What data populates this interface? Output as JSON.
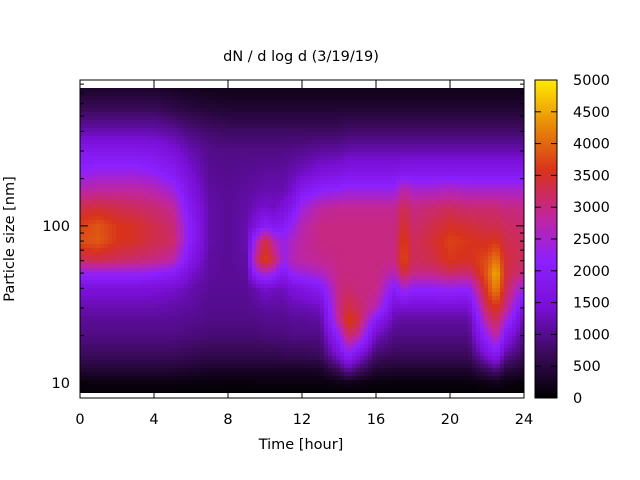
{
  "chart_data": {
    "type": "heatmap",
    "title": "dN / d log d (3/19/19)",
    "xlabel": "Time [hour]",
    "ylabel": "Particle size [nm]",
    "xlim": [
      0,
      24
    ],
    "ylim": [
      8,
      850
    ],
    "y_scale": "log",
    "x_ticks": [
      "0",
      "4",
      "8",
      "12",
      "16",
      "20",
      "24"
    ],
    "y_ticks": [
      "10",
      "100"
    ],
    "colorbar": {
      "min": 0,
      "max": 5000,
      "ticks": [
        "0",
        "500",
        "1000",
        "1500",
        "2000",
        "2500",
        "3000",
        "3500",
        "4000",
        "4500",
        "5000"
      ]
    },
    "colormap": [
      "#000000",
      "#3b0a5c",
      "#7a0fd6",
      "#8c20ff",
      "#c1269b",
      "#d8321c",
      "#e88a08",
      "#ffea00"
    ],
    "grid": false,
    "x": [
      0,
      1,
      2,
      3,
      4,
      5,
      6,
      7,
      8,
      9,
      9.5,
      10,
      10.5,
      11,
      11.5,
      12,
      13,
      14,
      14.5,
      15,
      16,
      17,
      17.5,
      18,
      19,
      20,
      21,
      22,
      22.5,
      23,
      24
    ],
    "y": [
      8.5,
      10,
      12,
      15,
      20,
      25,
      30,
      40,
      50,
      60,
      80,
      100,
      130,
      170,
      220,
      300,
      400,
      550,
      850
    ],
    "z": [
      [
        50,
        120,
        400,
        700,
        950,
        1050,
        1200,
        1500,
        2300,
        3200,
        3800,
        3700,
        3300,
        2700,
        2200,
        1800,
        1200,
        700,
        200
      ],
      [
        50,
        120,
        400,
        700,
        950,
        1050,
        1200,
        1500,
        2300,
        3300,
        3900,
        3850,
        3400,
        2800,
        2300,
        1800,
        1200,
        700,
        200
      ],
      [
        50,
        120,
        400,
        700,
        950,
        1050,
        1200,
        1500,
        2300,
        3200,
        3600,
        3600,
        3300,
        2800,
        2300,
        1800,
        1200,
        700,
        200
      ],
      [
        50,
        120,
        400,
        700,
        950,
        1050,
        1200,
        1500,
        2300,
        3100,
        3500,
        3500,
        3200,
        2800,
        2300,
        1800,
        1200,
        700,
        200
      ],
      [
        50,
        120,
        400,
        700,
        950,
        1050,
        1200,
        1450,
        2200,
        3000,
        3300,
        3300,
        3100,
        2700,
        2200,
        1700,
        1200,
        700,
        200
      ],
      [
        50,
        120,
        400,
        700,
        950,
        1050,
        1150,
        1400,
        2000,
        2800,
        3200,
        3100,
        2900,
        2400,
        1900,
        1500,
        1100,
        600,
        150
      ],
      [
        50,
        100,
        350,
        650,
        900,
        1000,
        1100,
        1200,
        1400,
        1700,
        2000,
        2000,
        1800,
        1600,
        1400,
        1200,
        900,
        500,
        150
      ],
      [
        50,
        100,
        300,
        600,
        850,
        950,
        1000,
        1050,
        1100,
        1100,
        1150,
        1150,
        1150,
        1100,
        1050,
        1000,
        800,
        450,
        100
      ],
      [
        50,
        80,
        300,
        600,
        850,
        950,
        1000,
        1050,
        1050,
        1050,
        1050,
        1050,
        1050,
        1050,
        1000,
        950,
        750,
        400,
        100
      ],
      [
        50,
        80,
        300,
        600,
        850,
        950,
        1000,
        1050,
        1100,
        1150,
        1200,
        1200,
        1150,
        1100,
        1050,
        950,
        750,
        400,
        100
      ],
      [
        50,
        100,
        300,
        600,
        850,
        950,
        1050,
        1200,
        2200,
        3000,
        2500,
        1600,
        1300,
        1150,
        1050,
        950,
        750,
        400,
        100
      ],
      [
        50,
        100,
        300,
        600,
        900,
        1000,
        1100,
        1400,
        2600,
        3700,
        3400,
        2000,
        1400,
        1200,
        1100,
        950,
        750,
        400,
        100
      ],
      [
        50,
        100,
        300,
        600,
        900,
        1000,
        1100,
        1300,
        2300,
        3200,
        2700,
        1800,
        1300,
        1200,
        1100,
        950,
        750,
        400,
        100
      ],
      [
        50,
        100,
        300,
        650,
        900,
        1000,
        1100,
        1300,
        1800,
        2300,
        2300,
        1900,
        1500,
        1200,
        1100,
        950,
        750,
        400,
        100
      ],
      [
        50,
        100,
        300,
        650,
        950,
        1050,
        1200,
        1500,
        2300,
        2700,
        2600,
        2300,
        1800,
        1400,
        1200,
        1000,
        750,
        400,
        100
      ],
      [
        50,
        100,
        300,
        650,
        950,
        1050,
        1200,
        1600,
        2400,
        2800,
        2800,
        2700,
        2400,
        1800,
        1300,
        1000,
        750,
        400,
        100
      ],
      [
        50,
        100,
        300,
        700,
        950,
        1100,
        1300,
        1900,
        2600,
        2900,
        3000,
        3000,
        2800,
        2100,
        1500,
        1100,
        750,
        400,
        100
      ],
      [
        50,
        150,
        700,
        1500,
        2200,
        2900,
        3000,
        3000,
        3000,
        3000,
        3000,
        3000,
        2900,
        2200,
        1600,
        1100,
        750,
        400,
        100
      ],
      [
        50,
        200,
        1100,
        2100,
        3200,
        3700,
        3400,
        3100,
        3000,
        3000,
        3000,
        3000,
        2900,
        2300,
        1700,
        1200,
        800,
        400,
        100
      ],
      [
        50,
        150,
        800,
        1600,
        2900,
        3400,
        3200,
        3000,
        3000,
        3000,
        3000,
        3000,
        2900,
        2300,
        1700,
        1200,
        800,
        400,
        100
      ],
      [
        50,
        100,
        400,
        800,
        1300,
        1900,
        2700,
        3000,
        3000,
        3000,
        3000,
        3000,
        2900,
        2300,
        1700,
        1200,
        800,
        400,
        100
      ],
      [
        50,
        100,
        350,
        700,
        950,
        1150,
        1400,
        2000,
        2700,
        3000,
        3000,
        3000,
        2900,
        2300,
        1700,
        1200,
        800,
        400,
        100
      ],
      [
        50,
        100,
        350,
        700,
        950,
        1100,
        1400,
        2500,
        3400,
        3800,
        3700,
        3500,
        3300,
        2800,
        1800,
        1200,
        800,
        400,
        100
      ],
      [
        50,
        100,
        350,
        700,
        950,
        1100,
        1400,
        2200,
        3000,
        3200,
        3200,
        3100,
        3000,
        2500,
        1800,
        1200,
        800,
        400,
        100
      ],
      [
        50,
        100,
        350,
        700,
        950,
        1100,
        1400,
        2200,
        3000,
        3300,
        3400,
        3300,
        3100,
        2500,
        1800,
        1200,
        800,
        400,
        100
      ],
      [
        50,
        100,
        350,
        700,
        950,
        1100,
        1400,
        2300,
        3200,
        3600,
        3700,
        3500,
        3200,
        2600,
        1800,
        1200,
        800,
        400,
        100
      ],
      [
        50,
        100,
        350,
        700,
        950,
        1100,
        1400,
        2200,
        3100,
        3500,
        3600,
        3400,
        3100,
        2500,
        1800,
        1200,
        800,
        400,
        100
      ],
      [
        50,
        150,
        700,
        1500,
        2300,
        2900,
        3300,
        3700,
        3900,
        3800,
        3500,
        3300,
        3100,
        2500,
        1800,
        1200,
        800,
        400,
        100
      ],
      [
        50,
        200,
        900,
        1900,
        2900,
        3300,
        3600,
        4300,
        4600,
        4200,
        3600,
        3300,
        3100,
        2500,
        1800,
        1200,
        800,
        400,
        100
      ],
      [
        50,
        120,
        500,
        1100,
        1800,
        2500,
        3000,
        3300,
        3400,
        3400,
        3300,
        3200,
        3000,
        2500,
        1800,
        1200,
        800,
        400,
        100
      ],
      [
        50,
        100,
        350,
        700,
        950,
        1150,
        1500,
        2300,
        3000,
        3200,
        3200,
        3100,
        3000,
        2500,
        1800,
        1200,
        800,
        400,
        100
      ]
    ]
  }
}
